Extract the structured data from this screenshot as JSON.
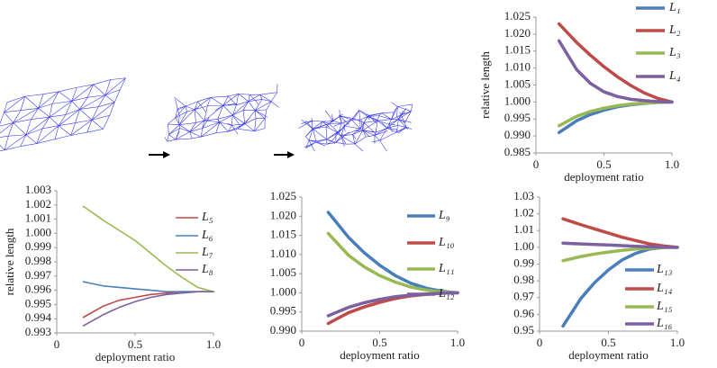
{
  "chart_data": [
    {
      "type": "line",
      "x_label": "deployment ratio",
      "y_label": "relative length",
      "x": [
        0.17,
        0.3,
        0.4,
        0.5,
        0.6,
        0.7,
        0.8,
        0.9,
        1.0
      ],
      "xlim": [
        0,
        1
      ],
      "xticks": [
        0,
        0.5,
        {
          "value": 1,
          "label": "1.0"
        }
      ],
      "ylim": [
        0.985,
        1.025
      ],
      "yticks": [
        0.985,
        {
          "value": 0.99,
          "label": "0.990"
        },
        0.995,
        {
          "value": 1,
          "label": "1.000"
        },
        1.005,
        {
          "value": 1.01,
          "label": "1.010"
        },
        1.015,
        {
          "value": 1.02,
          "label": "1.020"
        },
        1.025
      ],
      "series": [
        {
          "name": "L₁",
          "color": "#4a7ebb",
          "values": [
            0.991,
            0.9945,
            0.9963,
            0.9976,
            0.9986,
            0.9992,
            0.9996,
            0.9999,
            1.0
          ]
        },
        {
          "name": "L₂",
          "color": "#be4b48",
          "values": [
            1.023,
            1.0175,
            1.0138,
            1.0104,
            1.0074,
            1.0048,
            1.0026,
            1.001,
            1.0
          ]
        },
        {
          "name": "L₃",
          "color": "#98b954",
          "values": [
            0.993,
            0.9958,
            0.9972,
            0.9982,
            0.9989,
            0.9994,
            0.9997,
            0.9999,
            1.0
          ]
        },
        {
          "name": "L₄",
          "color": "#7d60a0",
          "values": [
            1.018,
            1.0095,
            1.0055,
            1.003,
            1.0016,
            1.0008,
            1.0004,
            1.0001,
            1.0
          ]
        }
      ]
    },
    {
      "type": "line",
      "x_label": "deployment ratio",
      "y_label": "relative length",
      "x": [
        0.17,
        0.3,
        0.4,
        0.5,
        0.6,
        0.7,
        0.8,
        0.9,
        1.0
      ],
      "xlim": [
        0,
        1
      ],
      "xticks": [
        0,
        0.5,
        {
          "value": 1,
          "label": "1.0"
        }
      ],
      "ylim": [
        0.993,
        1.003
      ],
      "yticks": [
        0.993,
        0.994,
        0.995,
        0.996,
        0.997,
        0.998,
        0.999,
        {
          "value": 1,
          "label": "1.000"
        },
        1.001,
        1.002,
        1.003
      ],
      "series": [
        {
          "name": "L₅",
          "color": "#be4b48",
          "values": [
            0.9941,
            0.9949,
            0.9953,
            0.9955,
            0.9957,
            0.9958,
            0.9959,
            0.9959,
            0.9959
          ]
        },
        {
          "name": "L₆",
          "color": "#4a7ebb",
          "values": [
            0.9966,
            0.9963,
            0.9962,
            0.9961,
            0.996,
            0.9959,
            0.9959,
            0.9959,
            0.9959
          ]
        },
        {
          "name": "L₇",
          "color": "#98b954",
          "values": [
            1.0019,
            1.0009,
            1.0002,
            0.9995,
            0.9986,
            0.9977,
            0.9969,
            0.9962,
            0.9959
          ]
        },
        {
          "name": "L₈",
          "color": "#7d60a0",
          "values": [
            0.9935,
            0.9943,
            0.9948,
            0.9952,
            0.9955,
            0.9957,
            0.9958,
            0.9959,
            0.9959
          ]
        }
      ]
    },
    {
      "type": "line",
      "x_label": "deployment ratio",
      "x": [
        0.17,
        0.3,
        0.4,
        0.5,
        0.6,
        0.7,
        0.8,
        0.9,
        1.0
      ],
      "xlim": [
        0,
        1
      ],
      "xticks": [
        0,
        0.5,
        {
          "value": 1,
          "label": "1.0"
        }
      ],
      "ylim": [
        0.99,
        1.025
      ],
      "yticks": [
        {
          "value": 0.99,
          "label": "0.990"
        },
        0.995,
        {
          "value": 1,
          "label": "1.000"
        },
        1.005,
        {
          "value": 1.01,
          "label": "1.010"
        },
        1.015,
        {
          "value": 1.02,
          "label": "1.020"
        },
        1.025
      ],
      "series": [
        {
          "name": "L₉",
          "color": "#4a7ebb",
          "values": [
            1.021,
            1.0145,
            1.0105,
            1.0072,
            1.0045,
            1.0025,
            1.0012,
            1.0004,
            1.0
          ]
        },
        {
          "name": "L₁₀",
          "color": "#be4b48",
          "values": [
            0.992,
            0.9948,
            0.9963,
            0.9975,
            0.9985,
            0.9992,
            0.9996,
            0.9999,
            1.0
          ]
        },
        {
          "name": "L₁₁",
          "color": "#98b954",
          "values": [
            1.0155,
            1.0098,
            1.0068,
            1.0045,
            1.0028,
            1.0015,
            1.0007,
            1.0002,
            1.0
          ]
        },
        {
          "name": "L₁₂",
          "color": "#7d60a0",
          "values": [
            0.994,
            0.9962,
            0.9974,
            0.9983,
            0.999,
            0.9994,
            0.9997,
            0.9999,
            1.0
          ]
        }
      ]
    },
    {
      "type": "line",
      "x_label": "deployment ratio",
      "x": [
        0.17,
        0.3,
        0.4,
        0.5,
        0.6,
        0.7,
        0.8,
        0.9,
        1.0
      ],
      "xlim": [
        0,
        1
      ],
      "xticks": [
        0,
        0.5,
        {
          "value": 1,
          "label": "1.0"
        }
      ],
      "ylim": [
        0.95,
        1.03
      ],
      "yticks": [
        0.95,
        0.96,
        0.97,
        0.98,
        0.99,
        {
          "value": 1,
          "label": "1.00"
        },
        1.01,
        1.02,
        1.03
      ],
      "series": [
        {
          "name": "L₁₃",
          "color": "#4a7ebb",
          "values": [
            0.953,
            0.9695,
            0.979,
            0.9865,
            0.9925,
            0.9965,
            0.999,
            1.0,
            1.0
          ]
        },
        {
          "name": "L₁₄",
          "color": "#be4b48",
          "values": [
            1.017,
            1.0135,
            1.011,
            1.0085,
            1.006,
            1.004,
            1.002,
            1.0008,
            1.0
          ]
        },
        {
          "name": "L₁₅",
          "color": "#98b954",
          "values": [
            0.992,
            0.9945,
            0.996,
            0.9972,
            0.9982,
            0.999,
            0.9995,
            0.9999,
            1.0
          ]
        },
        {
          "name": "L₁₆",
          "color": "#7d60a0",
          "values": [
            1.0025,
            1.002,
            1.0017,
            1.0014,
            1.001,
            1.0006,
            1.0003,
            1.0001,
            1.0
          ]
        }
      ]
    }
  ]
}
